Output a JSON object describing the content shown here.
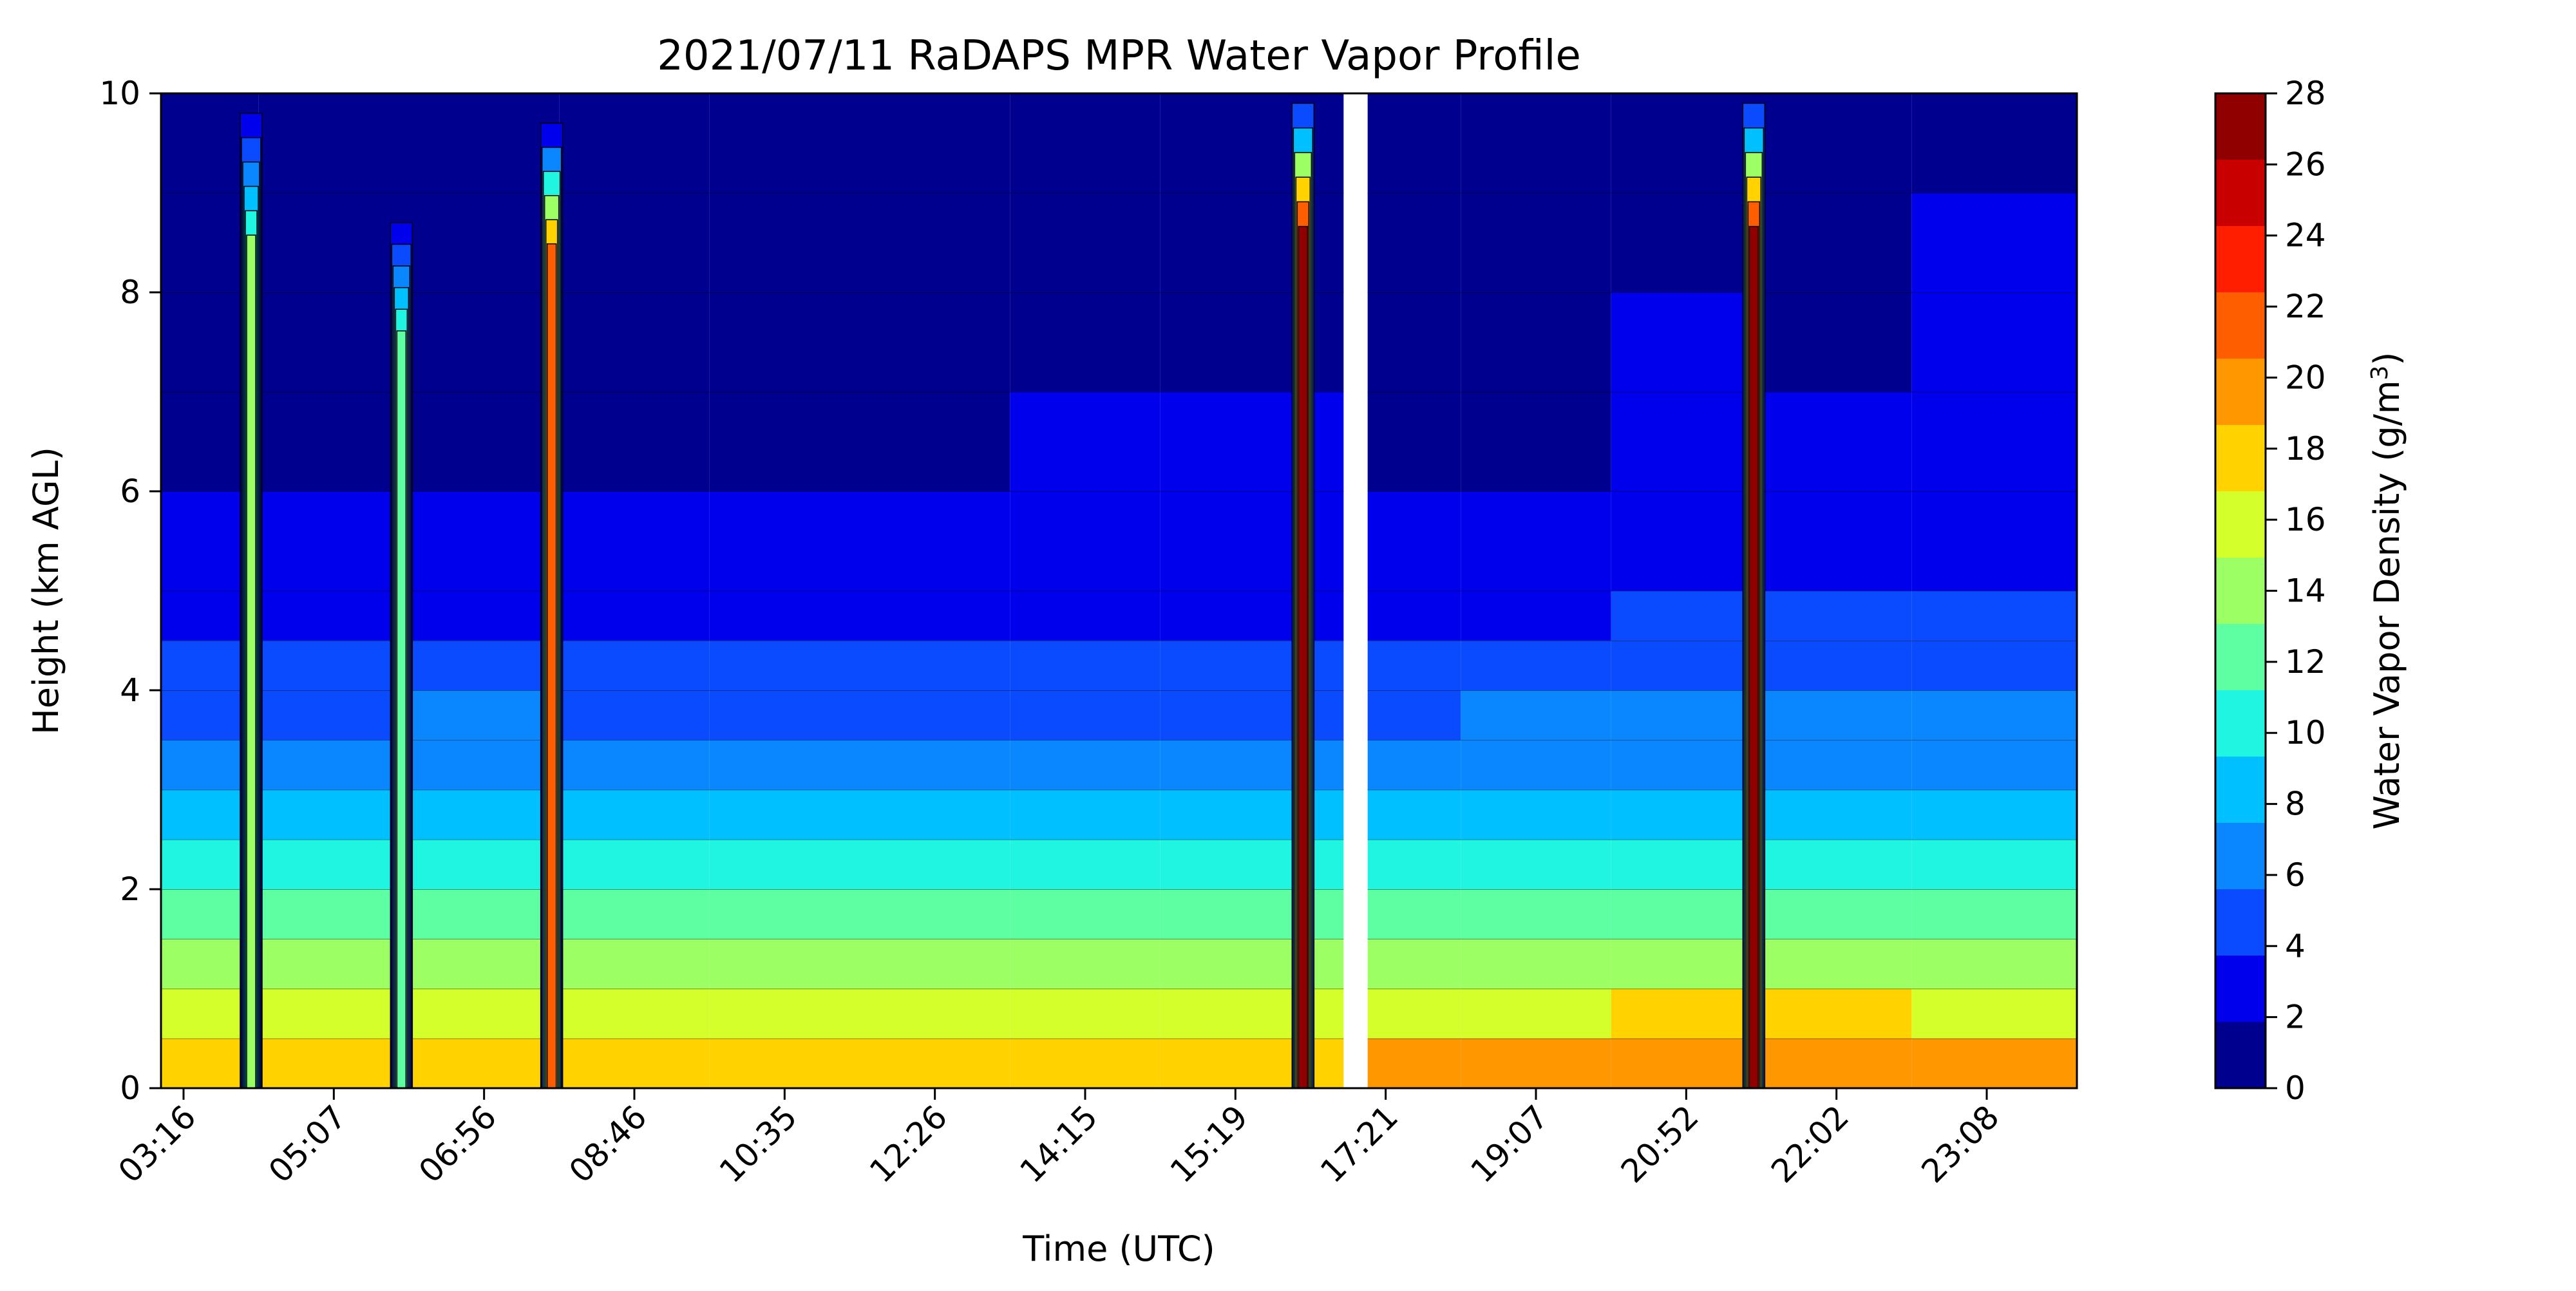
{
  "chart_data": {
    "type": "heatmap",
    "title": "2021/07/11 RaDAPS MPR Water Vapor Profile",
    "xlabel": "Time (UTC)",
    "ylabel": "Height (km AGL)",
    "x_ticks": [
      "03:16",
      "05:07",
      "06:56",
      "08:46",
      "10:35",
      "12:26",
      "14:15",
      "15:19",
      "17:21",
      "19:07",
      "20:52",
      "22:02",
      "23:08"
    ],
    "y_ticks": [
      "0",
      "2",
      "4",
      "6",
      "8",
      "10"
    ],
    "ylim": [
      0,
      10
    ],
    "colorbar": {
      "label_main": "Water Vapor Density (g/m",
      "label_sup": "3",
      "label_close": ")",
      "levels": [
        "0",
        "2",
        "4",
        "6",
        "8",
        "10",
        "12",
        "14",
        "16",
        "18",
        "20",
        "22",
        "24",
        "26",
        "28"
      ],
      "colors": [
        "#00008f",
        "#0000ed",
        "#0a4bff",
        "#0a87ff",
        "#00c0ff",
        "#1ff5e0",
        "#5dffa2",
        "#9cff63",
        "#d4ff2b",
        "#ffd200",
        "#ff9800",
        "#ff5e00",
        "#ff1f00",
        "#c80000",
        "#900000"
      ]
    },
    "gap_after_index": 7,
    "profile_levels_km": [
      0,
      0.5,
      1.0,
      1.5,
      2.0,
      2.5,
      3.0,
      3.5,
      4.0,
      4.5,
      5.0,
      6.0,
      7.0,
      8.0,
      9.0,
      10.0
    ],
    "columns": [
      {
        "time": "03:16",
        "values": [
          18,
          16,
          14,
          12,
          10,
          8,
          6,
          4,
          4,
          2,
          2,
          1,
          1,
          1,
          1
        ]
      },
      {
        "time": "05:07",
        "values": [
          18,
          16,
          14,
          12,
          10,
          9,
          7,
          5,
          4,
          3,
          2,
          1,
          1,
          1,
          1
        ]
      },
      {
        "time": "06:56",
        "values": [
          19,
          17,
          15,
          13,
          11,
          9,
          7,
          6,
          4,
          3,
          2,
          1,
          1,
          1,
          1
        ]
      },
      {
        "time": "08:46",
        "values": [
          18,
          16,
          14,
          12,
          10,
          8,
          6,
          5,
          4,
          3,
          2,
          1,
          1,
          1,
          1
        ]
      },
      {
        "time": "10:35",
        "values": [
          18,
          16,
          14,
          12,
          10,
          8,
          6,
          5,
          4,
          3,
          2,
          1,
          1,
          1,
          1
        ]
      },
      {
        "time": "12:26",
        "values": [
          19,
          16,
          14,
          12,
          10,
          8,
          6,
          5,
          4,
          3,
          2,
          1,
          1,
          1,
          1
        ]
      },
      {
        "time": "14:15",
        "values": [
          19,
          16,
          14,
          12,
          10,
          8,
          6,
          5,
          4,
          3,
          2,
          2,
          1,
          1,
          1
        ]
      },
      {
        "time": "15:19",
        "values": [
          18,
          16,
          14,
          12,
          10,
          8,
          6,
          5,
          4,
          3,
          2,
          2,
          1,
          1,
          1
        ]
      },
      {
        "time": "17:21",
        "values": [
          20,
          17,
          14,
          12,
          10,
          8,
          7,
          5,
          4,
          3,
          2,
          1,
          1,
          1,
          1
        ]
      },
      {
        "time": "19:07",
        "values": [
          20,
          17,
          14,
          12,
          10,
          8,
          7,
          6,
          5,
          3,
          2,
          1,
          1,
          1,
          1
        ]
      },
      {
        "time": "20:52",
        "values": [
          21,
          18,
          15,
          13,
          11,
          9,
          7,
          6,
          5,
          4,
          3,
          2,
          2,
          1,
          1
        ]
      },
      {
        "time": "22:02",
        "values": [
          21,
          18,
          15,
          13,
          11,
          9,
          7,
          6,
          5,
          4,
          3,
          2,
          1,
          1,
          1
        ]
      },
      {
        "time": "23:08",
        "values": [
          20,
          17,
          15,
          13,
          11,
          9,
          7,
          6,
          5,
          4,
          3,
          3,
          2,
          2,
          1
        ]
      }
    ],
    "moist_spikes": [
      {
        "time": "03:16",
        "top_km": 9.8,
        "peak": 14
      },
      {
        "time": "05:07",
        "top_km": 8.7,
        "peak": 13
      },
      {
        "time": "06:56",
        "top_km": 9.7,
        "peak": 22
      },
      {
        "time": "15:19",
        "top_km": 9.9,
        "peak": 28
      },
      {
        "time": "20:52",
        "top_km": 9.9,
        "peak": 28
      }
    ]
  }
}
